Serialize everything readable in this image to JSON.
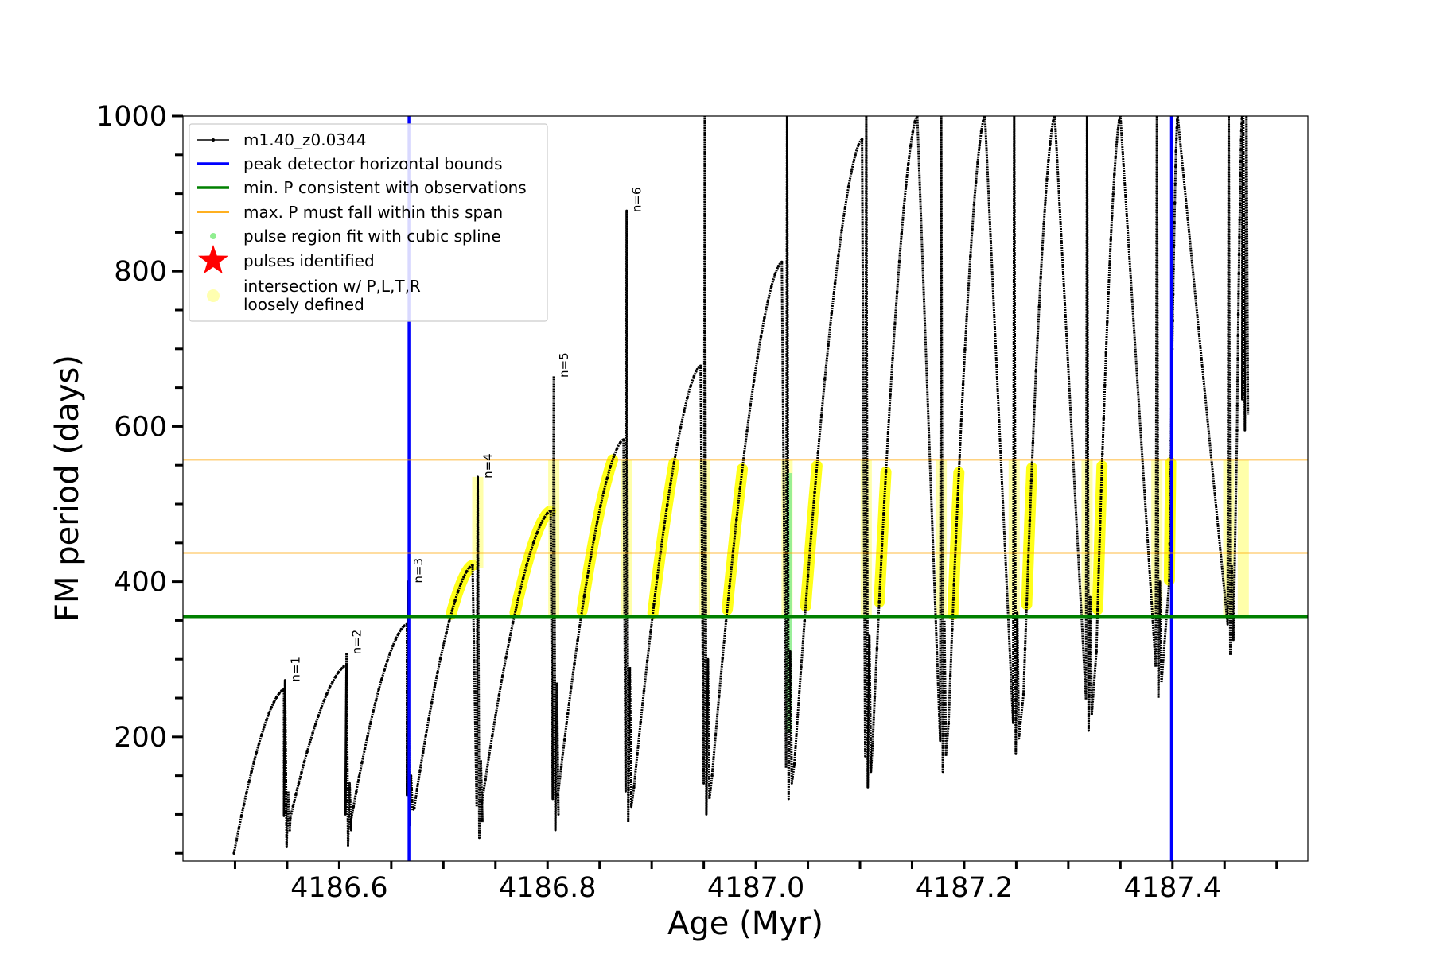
{
  "chart_data": {
    "type": "line",
    "xlabel": "Age (Myr)",
    "ylabel": "FM period (days)",
    "xlim": [
      4186.45,
      4187.53
    ],
    "ylim": [
      40,
      1000
    ],
    "x_ticks": [
      4186.6,
      4186.8,
      4187.0,
      4187.2,
      4187.4
    ],
    "x_tick_labels": [
      "4186.6",
      "4186.8",
      "4187.0",
      "4187.2",
      "4187.4"
    ],
    "x_minor_ticks": [
      4186.5,
      4186.55,
      4186.65,
      4186.7,
      4186.75,
      4186.85,
      4186.9,
      4186.95,
      4187.05,
      4187.1,
      4187.15,
      4187.25,
      4187.3,
      4187.35,
      4187.45,
      4187.5
    ],
    "y_ticks": [
      200,
      400,
      600,
      800,
      1000
    ],
    "y_tick_labels": [
      "200",
      "400",
      "600",
      "800",
      "1000"
    ],
    "y_minor_ticks": [
      50,
      100,
      150,
      250,
      300,
      350,
      450,
      500,
      550,
      650,
      700,
      750,
      850,
      900,
      950
    ],
    "grid": false,
    "legend_position": "top-left",
    "legend": [
      {
        "label": "m1.40_z0.0344",
        "kind": "line-marker",
        "color": "#000000"
      },
      {
        "label": "peak detector horizontal bounds",
        "kind": "line",
        "color": "#0000ff"
      },
      {
        "label": "min. P consistent with observations",
        "kind": "line",
        "color": "#008000"
      },
      {
        "label": "max. P must fall within this span",
        "kind": "thin-line",
        "color": "#ffa500"
      },
      {
        "label": "pulse region fit with cubic spline",
        "kind": "dot",
        "color": "#90ee90"
      },
      {
        "label": "pulses identified",
        "kind": "star",
        "color": "#ff0000"
      },
      {
        "label": "intersection w/ P,L,T,R",
        "label2": "loosely defined",
        "kind": "dot-large",
        "color": "#ffffb0"
      }
    ],
    "series_color": "#000000",
    "blue_bounds_x": [
      4186.667,
      4187.399
    ],
    "min_period": 355,
    "max_period_span": [
      437,
      557
    ],
    "cycles": [
      {
        "x0": 4186.499,
        "y0": 50,
        "xp": 4186.547,
        "yp": 261,
        "pulse": 4186.548,
        "top": 273,
        "bottom": 58,
        "top2": 130,
        "label": "n=1"
      },
      {
        "x0": 4186.553,
        "y0": 95,
        "xp": 4186.607,
        "yp": 292,
        "pulse": 4186.607,
        "top": 308,
        "bottom": 60,
        "top2": 140,
        "label": "n=2"
      },
      {
        "x0": 4186.611,
        "y0": 90,
        "xp": 4186.665,
        "yp": 345,
        "pulse": 4186.666,
        "top": 400,
        "bottom": 85,
        "top2": 150,
        "label": "n=3"
      },
      {
        "x0": 4186.672,
        "y0": 108,
        "xp": 4186.728,
        "yp": 421,
        "pulse": 4186.733,
        "top": 535,
        "bottom": 70,
        "top2": 170,
        "label": "n=4"
      },
      {
        "x0": 4186.737,
        "y0": 115,
        "xp": 4186.803,
        "yp": 491,
        "pulse": 4186.806,
        "top": 665,
        "bottom": 80,
        "top2": 270,
        "label": "n=5"
      },
      {
        "x0": 4186.81,
        "y0": 125,
        "xp": 4186.873,
        "yp": 583,
        "pulse": 4186.876,
        "top": 878,
        "bottom": 90,
        "top2": 290,
        "label": "n=6"
      },
      {
        "x0": 4186.883,
        "y0": 135,
        "xp": 4186.947,
        "yp": 678,
        "pulse": 4186.951,
        "top": 1000,
        "bottom": 100,
        "top2": 300,
        "label": ""
      },
      {
        "x0": 4186.958,
        "y0": 150,
        "xp": 4187.025,
        "yp": 812,
        "pulse": 4187.03,
        "top": 1000,
        "bottom": 120,
        "top2": 310,
        "label": ""
      },
      {
        "x0": 4187.037,
        "y0": 165,
        "xp": 4187.102,
        "yp": 970,
        "pulse": 4187.106,
        "top": 1000,
        "bottom": 135,
        "top2": 330,
        "label": ""
      },
      {
        "x0": 4187.112,
        "y0": 188,
        "xp": 4187.155,
        "yp": 1000,
        "pulse": 4187.178,
        "top": 1000,
        "bottom": 155,
        "top2": 350,
        "label": ""
      },
      {
        "x0": 4187.185,
        "y0": 217,
        "xp": 4187.22,
        "yp": 1000,
        "pulse": 4187.248,
        "top": 1000,
        "bottom": 178,
        "top2": 360,
        "label": ""
      },
      {
        "x0": 4187.257,
        "y0": 255,
        "xp": 4187.287,
        "yp": 1000,
        "pulse": 4187.318,
        "top": 1000,
        "bottom": 208,
        "top2": 380,
        "label": ""
      },
      {
        "x0": 4187.327,
        "y0": 310,
        "xp": 4187.35,
        "yp": 1000,
        "pulse": 4187.385,
        "top": 1000,
        "bottom": 250,
        "top2": 400,
        "label": ""
      },
      {
        "x0": 4187.397,
        "y0": 402,
        "xp": 4187.405,
        "yp": 1000,
        "pulse": 4187.454,
        "top": 1000,
        "bottom": 305,
        "top2": 420,
        "label": ""
      },
      {
        "x0": 4187.462,
        "y0": 595,
        "xp": 4187.467,
        "yp": 1000,
        "pulse": 4187.468,
        "top": 1000,
        "bottom": 595,
        "top2": 1000,
        "label": ""
      }
    ],
    "spline_region": {
      "x": 4187.032,
      "ymin": 205,
      "ymax": 540
    }
  }
}
